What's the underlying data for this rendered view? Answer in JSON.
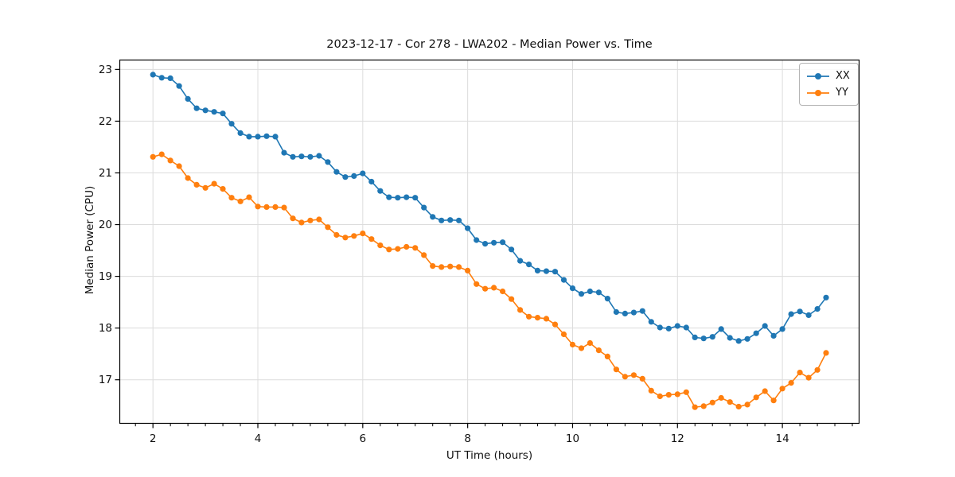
{
  "figure": {
    "background": "#ffffff"
  },
  "chart_data": {
    "type": "line",
    "title": "2023-12-17 - Cor 278 - LWA202 - Median Power vs. Time",
    "xlabel": "UT Time (hours)",
    "ylabel": "Median Power (CPU)",
    "xlim": [
      1.36,
      15.47
    ],
    "ylim": [
      16.15,
      23.19
    ],
    "xticks": [
      2,
      4,
      6,
      8,
      10,
      12,
      14
    ],
    "yticks": [
      17,
      18,
      19,
      20,
      21,
      22,
      23
    ],
    "x_minor_step": 0.3333,
    "grid": true,
    "grid_color": "#dcdcdc",
    "spine_color": "#000000",
    "legend_position": "upper right",
    "x": [
      2.0,
      2.167,
      2.333,
      2.5,
      2.667,
      2.833,
      3.0,
      3.167,
      3.333,
      3.5,
      3.667,
      3.833,
      4.0,
      4.167,
      4.333,
      4.5,
      4.667,
      4.833,
      5.0,
      5.167,
      5.333,
      5.5,
      5.667,
      5.833,
      6.0,
      6.167,
      6.333,
      6.5,
      6.667,
      6.833,
      7.0,
      7.167,
      7.333,
      7.5,
      7.667,
      7.833,
      8.0,
      8.167,
      8.333,
      8.5,
      8.667,
      8.833,
      9.0,
      9.167,
      9.333,
      9.5,
      9.667,
      9.833,
      10.0,
      10.167,
      10.333,
      10.5,
      10.667,
      10.833,
      11.0,
      11.167,
      11.333,
      11.5,
      11.667,
      11.833,
      12.0,
      12.167,
      12.333,
      12.5,
      12.667,
      12.833,
      13.0,
      13.167,
      13.333,
      13.5,
      13.667,
      13.833,
      14.0,
      14.167,
      14.333,
      14.5,
      14.667,
      14.833
    ],
    "series": [
      {
        "name": "XX",
        "color": "#1f77b4",
        "values": [
          22.9,
          22.84,
          22.83,
          22.68,
          22.43,
          22.25,
          22.21,
          22.18,
          22.15,
          21.95,
          21.77,
          21.7,
          21.7,
          21.71,
          21.7,
          21.39,
          21.31,
          21.32,
          21.31,
          21.33,
          21.21,
          21.02,
          20.92,
          20.94,
          20.99,
          20.83,
          20.65,
          20.53,
          20.52,
          20.53,
          20.52,
          20.33,
          20.15,
          20.08,
          20.09,
          20.08,
          19.93,
          19.7,
          19.63,
          19.65,
          19.66,
          19.52,
          19.3,
          19.23,
          19.11,
          19.1,
          19.09,
          18.93,
          18.77,
          18.66,
          18.71,
          18.69,
          18.57,
          18.31,
          18.28,
          18.3,
          18.33,
          18.12,
          18.01,
          17.99,
          18.04,
          18.01,
          17.82,
          17.8,
          17.83,
          17.98,
          17.81,
          17.75,
          17.79,
          17.9,
          18.04,
          17.85,
          17.98,
          18.27,
          18.32,
          18.25,
          18.37,
          18.59
        ]
      },
      {
        "name": "YY",
        "color": "#ff7f0e",
        "values": [
          21.31,
          21.36,
          21.24,
          21.13,
          20.9,
          20.77,
          20.71,
          20.79,
          20.69,
          20.52,
          20.45,
          20.53,
          20.35,
          20.34,
          20.34,
          20.33,
          20.12,
          20.04,
          20.08,
          20.1,
          19.95,
          19.8,
          19.75,
          19.78,
          19.83,
          19.72,
          19.6,
          19.52,
          19.53,
          19.57,
          19.55,
          19.41,
          19.2,
          19.18,
          19.19,
          19.18,
          19.11,
          18.85,
          18.76,
          18.78,
          18.71,
          18.56,
          18.35,
          18.22,
          18.2,
          18.18,
          18.07,
          17.88,
          17.68,
          17.61,
          17.71,
          17.57,
          17.45,
          17.2,
          17.06,
          17.09,
          17.02,
          16.79,
          16.68,
          16.71,
          16.72,
          16.76,
          16.47,
          16.49,
          16.56,
          16.65,
          16.57,
          16.48,
          16.52,
          16.66,
          16.78,
          16.6,
          16.83,
          16.94,
          17.14,
          17.04,
          17.19,
          17.52
        ]
      }
    ]
  }
}
